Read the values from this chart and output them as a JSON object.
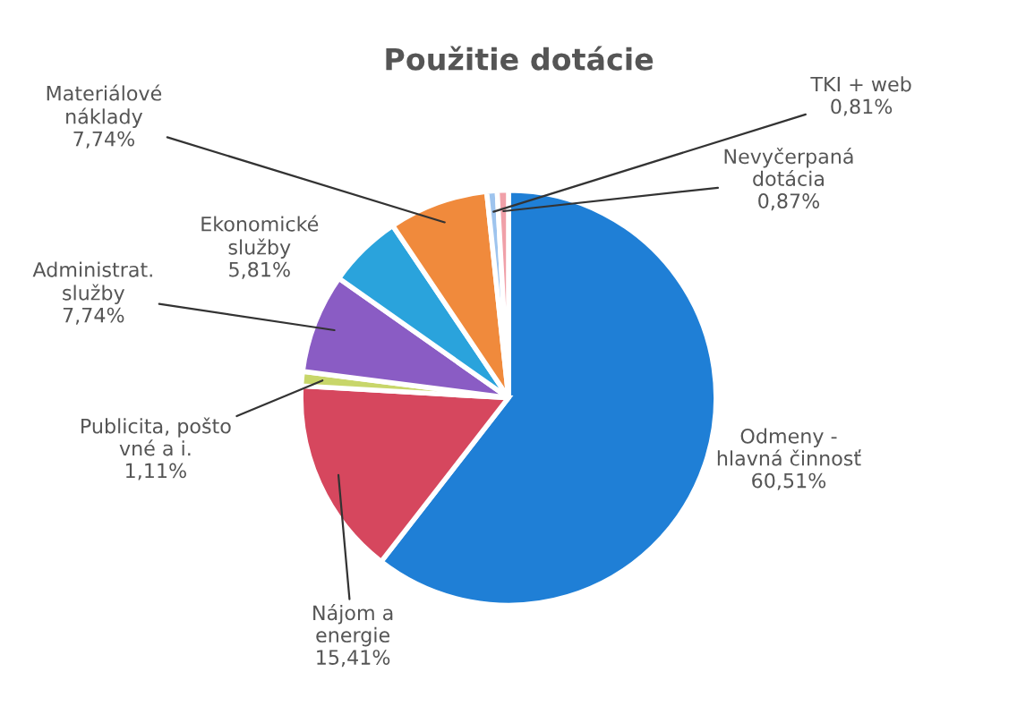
{
  "chart_data": {
    "type": "pie",
    "title": "Použitie dotácie",
    "categories": [
      "Odmeny -\nhlavná činnosť",
      "Nájom a\nenergie",
      "Publicita, pošto\nvné a i.",
      "Administrat.\nslužby",
      "Ekonomické\nslužby",
      "Materiálové\nnáklady",
      "TKI + web",
      "Nevyčerpaná\ndotácia"
    ],
    "values": [
      60.51,
      15.41,
      1.11,
      7.74,
      5.81,
      7.74,
      0.81,
      0.87
    ],
    "value_labels": [
      "60,51%",
      "15,41%",
      "1,11%",
      "7,74%",
      "5,81%",
      "7,74%",
      "0,81%",
      "0,87%"
    ],
    "colors": [
      "#1f7fd6",
      "#d6475e",
      "#c8d66a",
      "#8a5cc4",
      "#2aa3dc",
      "#f08a3c",
      "#9ec4ee",
      "#f0a0a8"
    ],
    "legend": false
  }
}
